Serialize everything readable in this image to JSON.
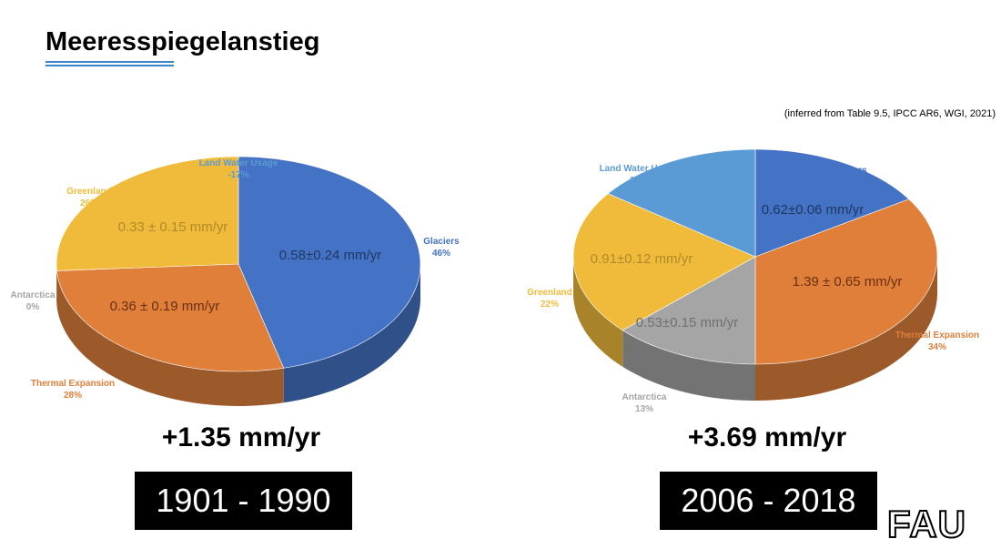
{
  "title": "Meeresspiegelanstieg",
  "citation": "(inferred from Table 9.5, IPCC AR6, WGI, 2021)",
  "logo": "FAU",
  "chart_data": [
    {
      "type": "pie",
      "style": "3d",
      "total": "+1.35 mm/yr",
      "period": "1901 - 1990",
      "slices": [
        {
          "name": "Glaciers",
          "percent": 46,
          "pct_label": "46%",
          "value_label": "0.58±0.24 mm/yr",
          "color": "#4472c4"
        },
        {
          "name": "Thermal Expansion",
          "percent": 28,
          "pct_label": "28%",
          "value_label": "0.36 ± 0.19 mm/yr",
          "color": "#df7f3a"
        },
        {
          "name": "Antarctica",
          "percent": 0,
          "pct_label": "0%",
          "value_label": "",
          "color": "#a5a5a5"
        },
        {
          "name": "Greenland",
          "percent": 26,
          "pct_label": "26%",
          "value_label": "0.33 ± 0.15 mm/yr",
          "color": "#f0bb3a"
        },
        {
          "name": "Land Water Usage",
          "percent": -17,
          "pct_label": "-17%",
          "value_label": "",
          "color": "#5b9bd5"
        }
      ]
    },
    {
      "type": "pie",
      "style": "3d",
      "total": "+3.69 mm/yr",
      "period": "2006 - 2018",
      "slices": [
        {
          "name": "Glaciers",
          "percent": 16,
          "pct_label": "16%",
          "value_label": "0.62±0.06 mm/yr",
          "color": "#4472c4"
        },
        {
          "name": "Thermal Expansion",
          "percent": 34,
          "pct_label": "34%",
          "value_label": "1.39 ± 0.65 mm/yr",
          "color": "#df7f3a"
        },
        {
          "name": "Antarctica",
          "percent": 13,
          "pct_label": "13%",
          "value_label": "0.53±0.15 mm/yr",
          "color": "#a5a5a5"
        },
        {
          "name": "Greenland",
          "percent": 22,
          "pct_label": "22%",
          "value_label": "0.91±0.12 mm/yr",
          "color": "#f0bb3a"
        },
        {
          "name": "Land Water Usage",
          "percent": 15,
          "pct_label": "15%",
          "value_label": "",
          "color": "#5b9bd5"
        }
      ]
    }
  ]
}
